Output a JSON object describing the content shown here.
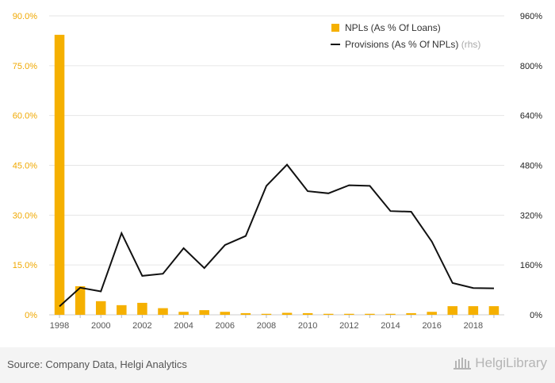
{
  "chart_data": {
    "type": "bar+line",
    "x": [
      "1998",
      "1999",
      "2000",
      "2001",
      "2002",
      "2003",
      "2004",
      "2005",
      "2006",
      "2007",
      "2008",
      "2009",
      "2010",
      "2011",
      "2012",
      "2013",
      "2014",
      "2015",
      "2016",
      "2017",
      "2018",
      "2019"
    ],
    "x_tick_labels": [
      "1998",
      "2000",
      "2002",
      "2004",
      "2006",
      "2008",
      "2010",
      "2012",
      "2014",
      "2016",
      "2018"
    ],
    "series": [
      {
        "name": "NPLs (As % Of Loans)",
        "type": "bar",
        "axis": "left",
        "color": "#f5b000",
        "values": [
          84.3,
          8.6,
          4.1,
          2.9,
          3.6,
          2.0,
          0.9,
          1.4,
          0.9,
          0.5,
          0.3,
          0.6,
          0.5,
          0.3,
          0.3,
          0.3,
          0.3,
          0.5,
          0.9,
          2.6,
          2.6,
          2.6
        ]
      },
      {
        "name": "Provisions (As % Of NPLs)",
        "note": "(rhs)",
        "type": "line",
        "axis": "right",
        "color": "#111111",
        "values": [
          27,
          87,
          75,
          262,
          125,
          132,
          214,
          150,
          224,
          253,
          414,
          482,
          397,
          390,
          416,
          414,
          333,
          331,
          235,
          102,
          86,
          85
        ]
      }
    ],
    "y_left": {
      "min": 0,
      "max": 90,
      "ticks": [
        "0%",
        "15.0%",
        "30.0%",
        "45.0%",
        "60.0%",
        "75.0%",
        "90.0%"
      ]
    },
    "y_right": {
      "min": 0,
      "max": 960,
      "ticks": [
        "0%",
        "160%",
        "320%",
        "480%",
        "640%",
        "800%",
        "960%"
      ]
    },
    "grid": true,
    "legend_position": "top-right"
  },
  "footer": {
    "source": "Source: Company Data, Helgi Analytics",
    "logo_text": "HelgiLibrary"
  }
}
